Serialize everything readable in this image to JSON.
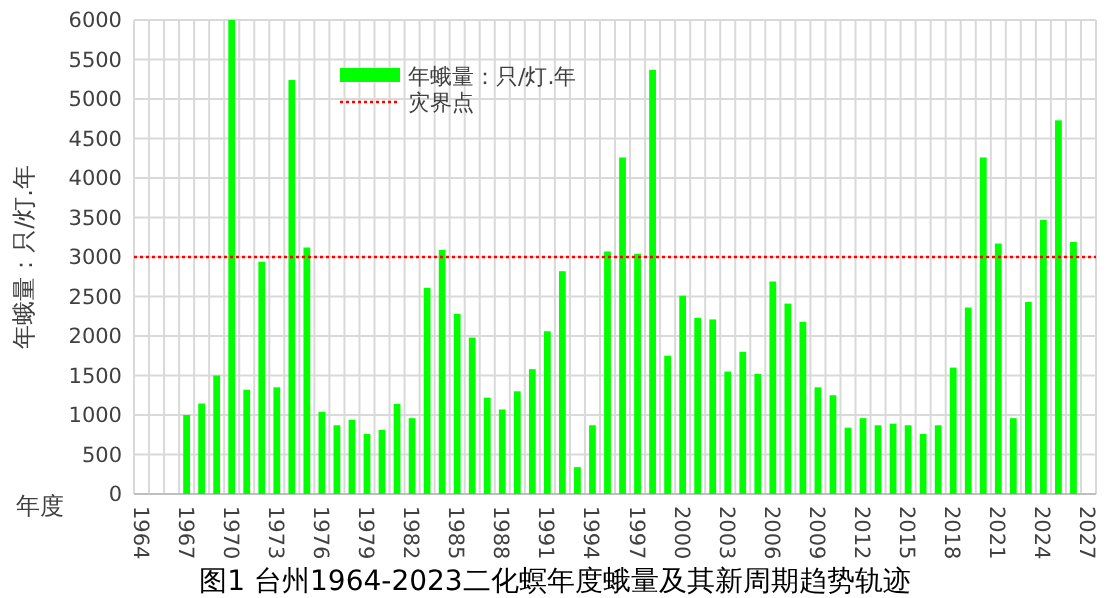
{
  "chart_data": {
    "type": "bar",
    "title": "图1  台州1964-2023二化螟年度蛾量及其新周期趋势轨迹",
    "xlabel": "年度",
    "ylabel": "年蛾量：只/灯.年",
    "categories": [
      "1964",
      null,
      null,
      "1967",
      null,
      null,
      "1970",
      null,
      null,
      "1973",
      null,
      null,
      "1976",
      null,
      null,
      "1979",
      null,
      null,
      "1982",
      null,
      null,
      "1985",
      null,
      null,
      "1988",
      null,
      null,
      "1991",
      null,
      null,
      "1994",
      null,
      null,
      "1997",
      null,
      null,
      "2000",
      null,
      null,
      "2003",
      null,
      null,
      "2006",
      null,
      null,
      "2009",
      null,
      null,
      "2012",
      null,
      null,
      "2015",
      null,
      null,
      "2018",
      null,
      null,
      "2021",
      null,
      null,
      "2024",
      null,
      null,
      "2027"
    ],
    "series": [
      {
        "name": "年蛾量：只/灯.年",
        "color": "#00ff00",
        "values": [
          null,
          null,
          null,
          1000,
          1145,
          1500,
          6000,
          1320,
          2940,
          1350,
          5240,
          3120,
          1040,
          870,
          940,
          760,
          810,
          1140,
          960,
          2610,
          3090,
          2280,
          1980,
          1220,
          1070,
          1300,
          1580,
          2060,
          2820,
          340,
          870,
          3070,
          4260,
          3040,
          5370,
          1750,
          2510,
          2230,
          2210,
          1550,
          1800,
          1520,
          2690,
          2410,
          2180,
          1350,
          1250,
          840,
          960,
          870,
          890,
          870,
          760,
          870,
          1600,
          2360,
          4260,
          3170,
          960,
          2430,
          3470,
          4730,
          3190,
          null
        ]
      }
    ],
    "ylim": [
      0,
      6000
    ],
    "yticks": [
      0,
      500,
      1000,
      1500,
      2000,
      2500,
      3000,
      3500,
      4000,
      4500,
      5000,
      5500,
      6000
    ],
    "grid": true,
    "legend": "top",
    "ref_lines": [
      {
        "axis": "y",
        "value": 3000,
        "label": "灾界点",
        "color": "#ff0000",
        "line_style": "dotted"
      }
    ]
  }
}
